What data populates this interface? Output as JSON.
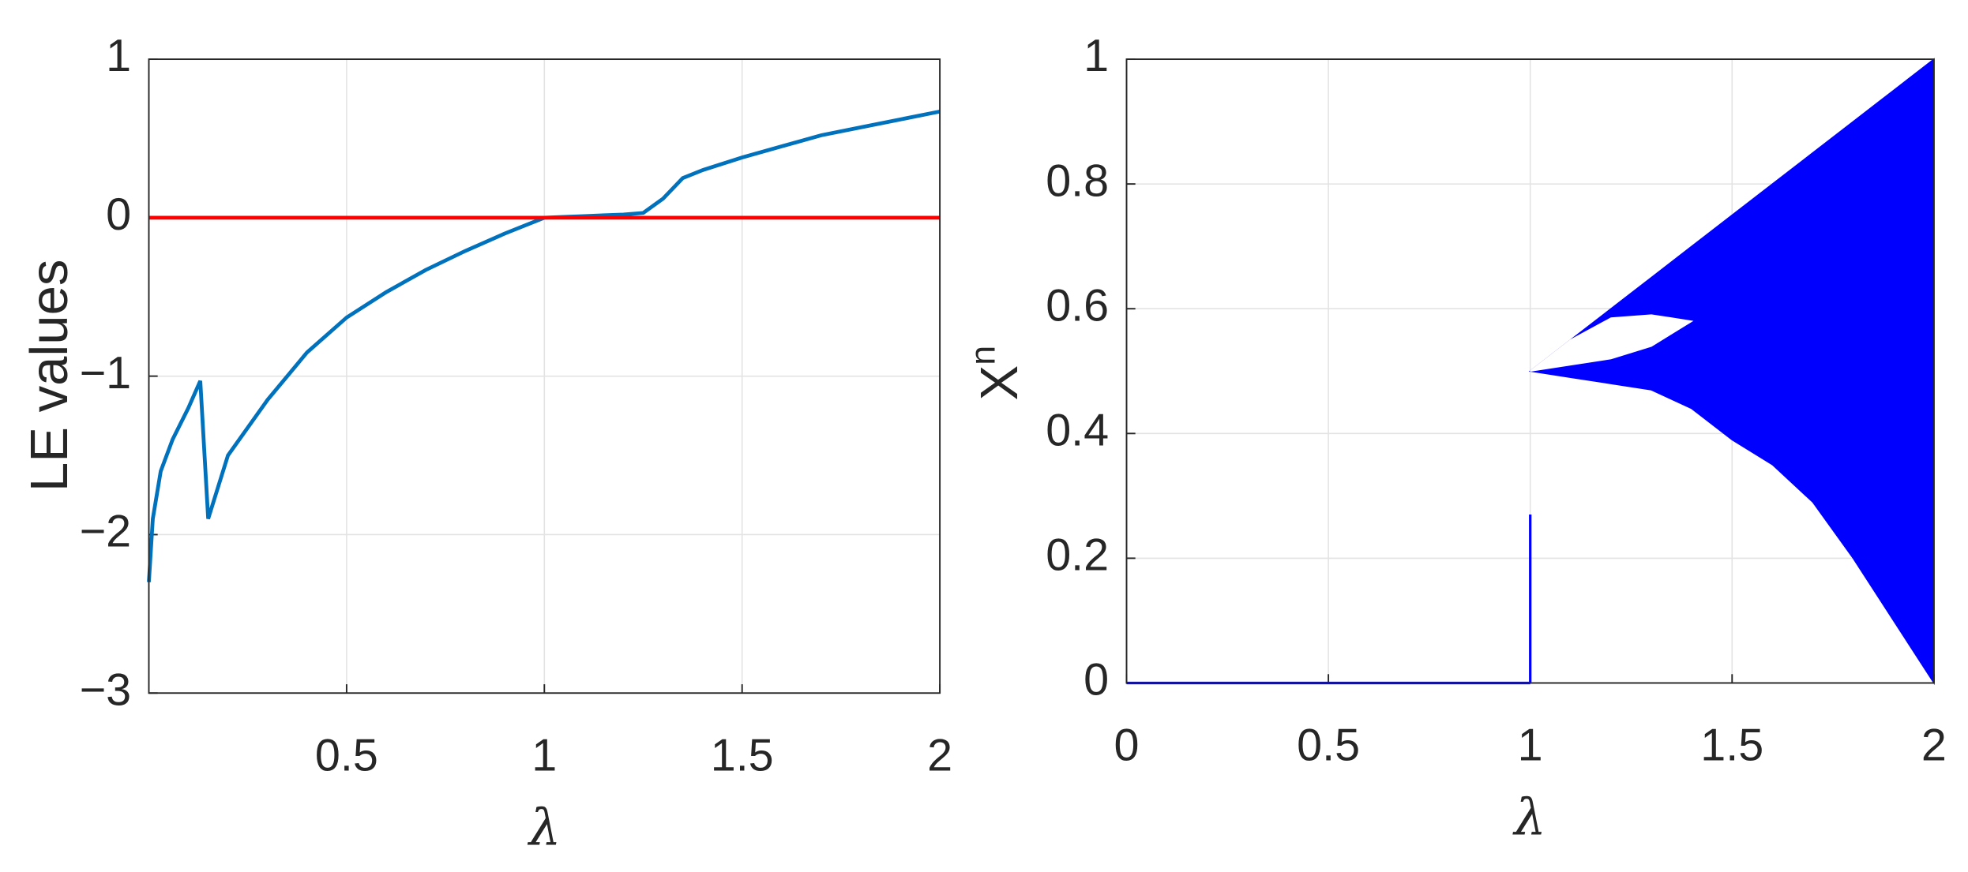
{
  "chart_data": [
    {
      "type": "line",
      "ylabel": "LE values",
      "xlabel": "λ",
      "x": [
        0,
        0.01,
        0.03,
        0.06,
        0.1,
        0.13,
        0.15,
        0.2,
        0.3,
        0.4,
        0.5,
        0.6,
        0.7,
        0.8,
        0.9,
        1.0,
        1.1,
        1.2,
        1.25,
        1.3,
        1.35,
        1.4,
        1.5,
        1.6,
        1.7,
        1.8,
        1.9,
        2.0
      ],
      "series": [
        {
          "color": "#0072bd",
          "values": [
            -2.3,
            -1.9,
            -1.6,
            -1.4,
            -1.2,
            -1.03,
            -1.9,
            -1.5,
            -1.15,
            -0.85,
            -0.63,
            -0.47,
            -0.33,
            -0.21,
            -0.1,
            0,
            0.01,
            0.02,
            0.03,
            0.12,
            0.25,
            0.3,
            0.38,
            0.45,
            0.52,
            0.57,
            0.62,
            0.67
          ]
        },
        {
          "color": "#ff0000",
          "values": [
            0,
            0,
            0,
            0,
            0,
            0,
            0,
            0,
            0,
            0,
            0,
            0,
            0,
            0,
            0,
            0,
            0,
            0,
            0,
            0,
            0,
            0,
            0,
            0,
            0,
            0,
            0,
            0
          ]
        }
      ],
      "xlim": [
        0,
        2
      ],
      "xticks": [
        0.5,
        1,
        1.5,
        2
      ],
      "ylim": [
        -3,
        1
      ],
      "yticks": [
        {
          "value": -3,
          "label": "−3"
        },
        {
          "value": -2,
          "label": "−2"
        },
        {
          "value": -1,
          "label": "−1"
        },
        0,
        1
      ],
      "grid": true
    },
    {
      "type": "range",
      "ylabel": "X",
      "ylabel_sub": "n",
      "xlabel": "λ",
      "bands": [
        {
          "color": "#0000ff",
          "x": [
            1,
            1.1,
            1.2,
            1.3,
            1.4,
            1.5,
            1.6,
            1.7,
            1.8,
            1.9,
            2
          ],
          "lower": [
            0.5,
            0.49,
            0.48,
            0.47,
            0.44,
            0.39,
            0.35,
            0.29,
            0.2,
            0.1,
            0
          ],
          "upper": [
            0.5,
            0.55,
            0.6,
            0.65,
            0.7,
            0.75,
            0.8,
            0.85,
            0.9,
            0.95,
            1
          ]
        },
        {
          "color": "#ffffff",
          "x": [
            1,
            1.1,
            1.2,
            1.3,
            1.35,
            1.4
          ],
          "lower": [
            0.5,
            0.51,
            0.52,
            0.54,
            0.56,
            0.58
          ],
          "upper": [
            0.5,
            0.55,
            0.585,
            0.59,
            0.585,
            0.58
          ]
        }
      ],
      "segments": [
        {
          "color": "#0000ff",
          "x": [
            0,
            1
          ],
          "y": [
            0,
            0
          ]
        },
        {
          "color": "#0000ff",
          "x": [
            1,
            1
          ],
          "y": [
            0,
            0.27
          ]
        }
      ],
      "xlim": [
        0,
        2
      ],
      "xticks": [
        0,
        0.5,
        1,
        1.5,
        2
      ],
      "ylim": [
        0,
        1
      ],
      "yticks": [
        0,
        0.2,
        0.4,
        0.6,
        0.8,
        1
      ],
      "grid": true
    }
  ]
}
